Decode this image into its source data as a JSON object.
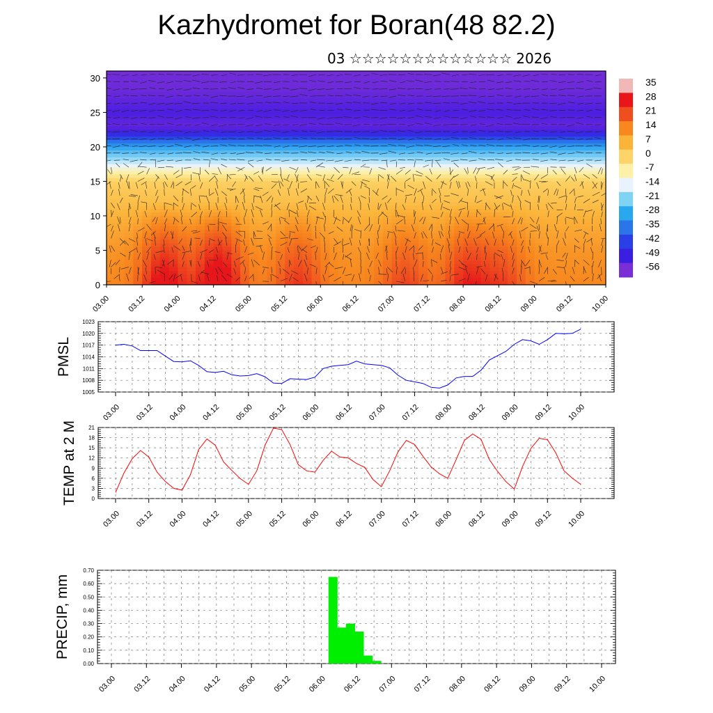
{
  "title": "Kazhydromet for Boran(48 82.2)",
  "subtitle": "03 ☆☆☆☆☆☆☆☆☆☆☆☆☆ 2026",
  "time_labels": [
    "03.00",
    "03.12",
    "04.00",
    "04.12",
    "05.00",
    "05.12",
    "06.00",
    "06.12",
    "07.00",
    "07.12",
    "08.00",
    "08.12",
    "09.00",
    "09.12",
    "10.00"
  ],
  "chart_data": [
    {
      "type": "heatmap",
      "ylim": [
        0,
        31
      ],
      "y_ticks": [
        "0",
        "5",
        "10",
        "15",
        "20",
        "25",
        "30"
      ],
      "colorbar_labels": [
        "35",
        "28",
        "21",
        "14",
        "7",
        "0",
        "-7",
        "-14",
        "-21",
        "-28",
        "-35",
        "-42",
        "-49",
        "-56"
      ],
      "colorbar_colors": [
        "#f2b8b8",
        "#e8161a",
        "#ef4f1f",
        "#f7871e",
        "#fbb43a",
        "#fcd46a",
        "#fdf0a8",
        "#e8f3ff",
        "#7fd4f6",
        "#29a8ee",
        "#2a76e8",
        "#2a3fe6",
        "#3b1fe0",
        "#7a2fd6"
      ],
      "levels_km": [
        0,
        5,
        10,
        15,
        17,
        20,
        21.5,
        23,
        25,
        28,
        31
      ],
      "temp_profile": [
        12,
        10,
        6,
        1,
        -10,
        -28,
        -46,
        -55,
        -52,
        -56,
        -57
      ],
      "surface_warm_maxima": [
        {
          "x": 6,
          "amp": 20
        },
        {
          "x": 12,
          "amp": 24
        },
        {
          "x": 21,
          "amp": 12
        },
        {
          "x": 33,
          "amp": 10
        },
        {
          "x": 40,
          "amp": 15
        },
        {
          "x": 44,
          "amp": 10
        }
      ]
    },
    {
      "type": "line",
      "ylabel": "PMSL",
      "ylim": [
        1005,
        1023
      ],
      "y_ticks": [
        "1005",
        "1008",
        "1011",
        "1014",
        "1017",
        "1020",
        "1023"
      ],
      "color": "#0000ff",
      "values": [
        1017.0,
        1017.2,
        1016.8,
        1015.6,
        1015.6,
        1015.6,
        1014.2,
        1012.8,
        1012.7,
        1013.0,
        1011.8,
        1010.2,
        1010.0,
        1010.3,
        1009.4,
        1009.1,
        1009.2,
        1009.7,
        1008.9,
        1007.3,
        1007.2,
        1008.4,
        1008.3,
        1008.2,
        1008.8,
        1011.0,
        1011.6,
        1011.8,
        1012.0,
        1012.9,
        1012.2,
        1012.0,
        1011.8,
        1011.2,
        1009.3,
        1008.0,
        1007.6,
        1007.2,
        1006.2,
        1006.0,
        1006.8,
        1008.6,
        1009.0,
        1009.0,
        1010.6,
        1013.2,
        1014.3,
        1015.4,
        1017.2,
        1018.4,
        1018.1,
        1017.2,
        1018.4,
        1020.0,
        1019.9,
        1020.0,
        1021.1
      ]
    },
    {
      "type": "line",
      "ylabel": "TEMP at 2 M",
      "ylim": [
        0,
        21
      ],
      "y_ticks": [
        "0",
        "3",
        "6",
        "9",
        "12",
        "15",
        "18",
        "21"
      ],
      "color": "#ff0000",
      "values": [
        1.8,
        7.5,
        11.8,
        14.2,
        12.3,
        7.8,
        5.0,
        3.0,
        2.5,
        7.0,
        14.5,
        17.6,
        15.8,
        10.8,
        8.3,
        5.9,
        4.2,
        8.2,
        15.8,
        20.8,
        20.4,
        16.0,
        10.0,
        8.2,
        7.8,
        11.3,
        14.0,
        12.3,
        12.0,
        10.4,
        9.2,
        5.6,
        3.5,
        8.2,
        13.8,
        17.2,
        16.0,
        12.5,
        9.3,
        7.3,
        6.0,
        11.5,
        17.2,
        19.1,
        17.5,
        11.5,
        8.0,
        5.0,
        2.8,
        9.5,
        14.8,
        17.8,
        17.4,
        13.5,
        8.2,
        6.0,
        4.2
      ]
    },
    {
      "type": "bar",
      "ylabel": "PRECIP, mm",
      "ylim": [
        0,
        0.7
      ],
      "y_ticks": [
        "0.00",
        "0.10",
        "0.20",
        "0.30",
        "0.40",
        "0.50",
        "0.60",
        "0.70"
      ],
      "color": "#00ee00",
      "bars": [
        {
          "x": 24,
          "value": 0.65
        },
        {
          "x": 25,
          "value": 0.27
        },
        {
          "x": 26,
          "value": 0.3
        },
        {
          "x": 27,
          "value": 0.24
        },
        {
          "x": 28,
          "value": 0.06
        },
        {
          "x": 29,
          "value": 0.02
        }
      ]
    }
  ]
}
